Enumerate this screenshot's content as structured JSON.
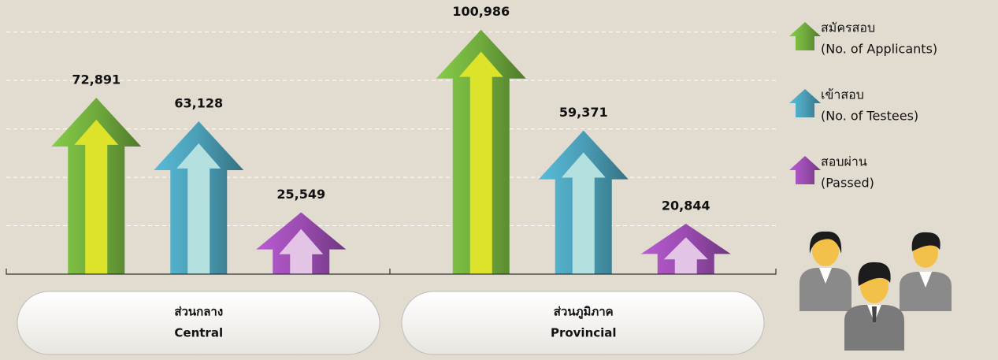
{
  "chart_data": {
    "type": "arrow-bar",
    "categories": [
      "ส่วนกลาง",
      "ส่วนภูมิภาค"
    ],
    "categories_en": [
      "Central",
      "Provincial"
    ],
    "series": [
      {
        "name": "สมัครสอบ",
        "name_en": "(No. of Applicants)",
        "color": "#6faa3c",
        "inner_color": "#dde32a",
        "values": [
          72891,
          100986
        ],
        "value_labels": [
          "72,891",
          "100,986"
        ]
      },
      {
        "name": "เข้าสอบ",
        "name_en": "(No. of Testees)",
        "color": "#4a9db5",
        "inner_color": "#b4e1df",
        "values": [
          63128,
          59371
        ],
        "value_labels": [
          "63,128",
          "59,371"
        ]
      },
      {
        "name": "สอบผ่าน",
        "name_en": "(Passed)",
        "color": "#9a4cb0",
        "inner_color": "#e3c4e6",
        "values": [
          25549,
          20844
        ],
        "value_labels": [
          "25,549",
          "20,844"
        ]
      }
    ],
    "ylim": [
      0,
      110000
    ],
    "yticks": [
      20000,
      40000,
      60000,
      80000,
      100000
    ],
    "grid": true
  }
}
